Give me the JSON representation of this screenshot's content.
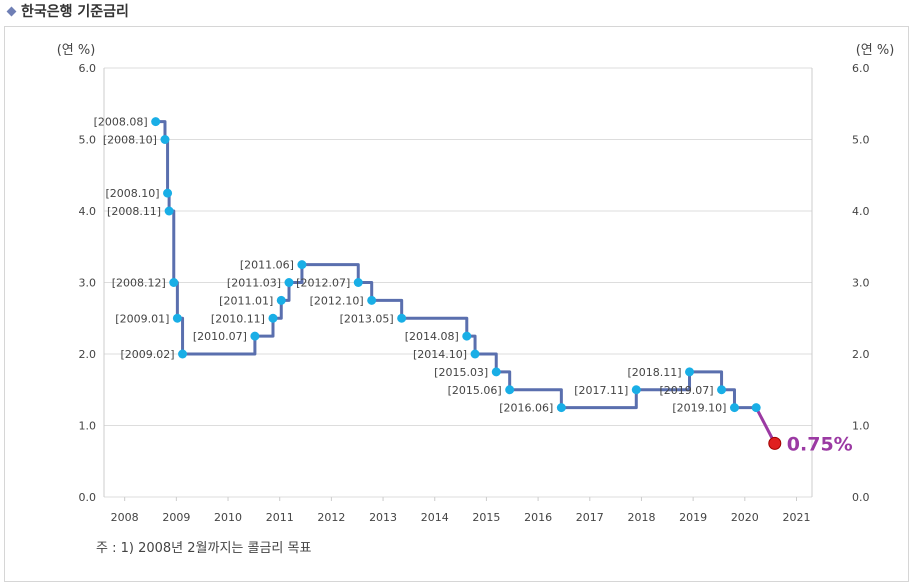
{
  "header": {
    "title": "한국은행 기준금리"
  },
  "footnote": "주 : 1) 2008년 2월까지는 콜금리 목표",
  "colors": {
    "line": "#5a6fae",
    "point": "#19aee6",
    "latest_point": "#e02020",
    "latest_label": "#9b3aa3",
    "grid": "#dddddd"
  },
  "chart_data": {
    "type": "line",
    "step": "after",
    "title": "한국은행 기준금리",
    "ylabel_left": "(연 %)",
    "ylabel_right": "(연 %)",
    "ylim": [
      0,
      6
    ],
    "yticks": [
      "0.0",
      "1.0",
      "2.0",
      "3.0",
      "4.0",
      "5.0",
      "6.0"
    ],
    "xlim": [
      2007.6,
      2021.3
    ],
    "xticks": [
      "2008",
      "2009",
      "2010",
      "2011",
      "2012",
      "2013",
      "2014",
      "2015",
      "2016",
      "2017",
      "2018",
      "2019",
      "2020",
      "2021"
    ],
    "points": [
      {
        "x": 2008.6,
        "y": 5.25,
        "label": "[2008.08]"
      },
      {
        "x": 2008.78,
        "y": 5.0,
        "label": "[2008.10]"
      },
      {
        "x": 2008.83,
        "y": 4.25,
        "label": "[2008.10]"
      },
      {
        "x": 2008.86,
        "y": 4.0,
        "label": "[2008.11]"
      },
      {
        "x": 2008.95,
        "y": 3.0,
        "label": "[2008.12]"
      },
      {
        "x": 2009.02,
        "y": 2.5,
        "label": "[2009.01]"
      },
      {
        "x": 2009.12,
        "y": 2.0,
        "label": "[2009.02]"
      },
      {
        "x": 2010.52,
        "y": 2.25,
        "label": "[2010.07]"
      },
      {
        "x": 2010.87,
        "y": 2.5,
        "label": "[2010.11]"
      },
      {
        "x": 2011.03,
        "y": 2.75,
        "label": "[2011.01]"
      },
      {
        "x": 2011.18,
        "y": 3.0,
        "label": "[2011.03]"
      },
      {
        "x": 2011.43,
        "y": 3.25,
        "label": "[2011.06]"
      },
      {
        "x": 2012.52,
        "y": 3.0,
        "label": "[2012.07]"
      },
      {
        "x": 2012.78,
        "y": 2.75,
        "label": "[2012.10]"
      },
      {
        "x": 2013.36,
        "y": 2.5,
        "label": "[2013.05]"
      },
      {
        "x": 2014.62,
        "y": 2.25,
        "label": "[2014.08]"
      },
      {
        "x": 2014.78,
        "y": 2.0,
        "label": "[2014.10]"
      },
      {
        "x": 2015.19,
        "y": 1.75,
        "label": "[2015.03]"
      },
      {
        "x": 2015.45,
        "y": 1.5,
        "label": "[2015.06]"
      },
      {
        "x": 2016.45,
        "y": 1.25,
        "label": "[2016.06]"
      },
      {
        "x": 2017.9,
        "y": 1.5,
        "label": "[2017.11]"
      },
      {
        "x": 2018.93,
        "y": 1.75,
        "label": "[2018.11]"
      },
      {
        "x": 2019.55,
        "y": 1.5,
        "label": "[2019.07]"
      },
      {
        "x": 2019.8,
        "y": 1.25,
        "label": "[2019.10]"
      },
      {
        "x": 2020.22,
        "y": 1.25,
        "label": ""
      }
    ],
    "latest": {
      "x": 2020.58,
      "y": 0.75,
      "label": "0.75%"
    },
    "grid": true,
    "legend": "none"
  }
}
